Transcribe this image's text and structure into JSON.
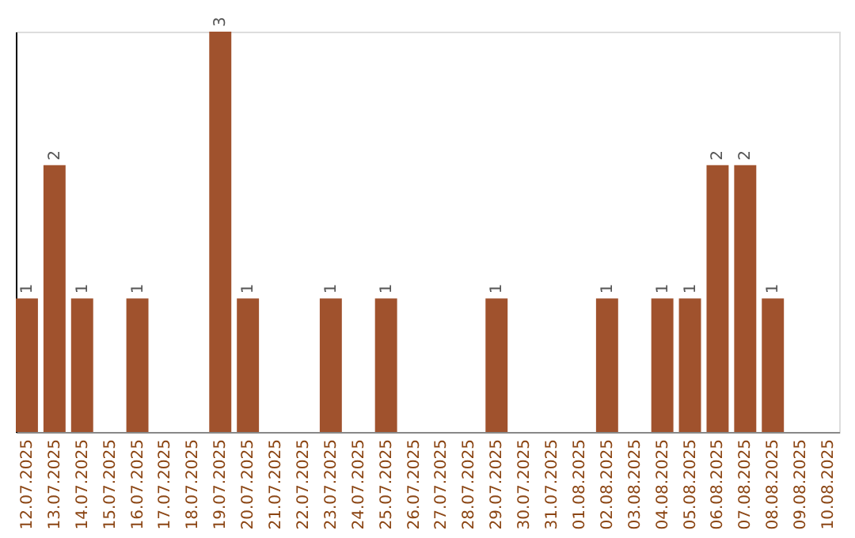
{
  "chart_data": {
    "type": "bar",
    "categories": [
      "12.07.2025",
      "13.07.2025",
      "14.07.2025",
      "15.07.2025",
      "16.07.2025",
      "17.07.2025",
      "18.07.2025",
      "19.07.2025",
      "20.07.2025",
      "21.07.2025",
      "22.07.2025",
      "23.07.2025",
      "24.07.2025",
      "25.07.2025",
      "26.07.2025",
      "27.07.2025",
      "28.07.2025",
      "29.07.2025",
      "30.07.2025",
      "31.07.2025",
      "01.08.2025",
      "02.08.2025",
      "03.08.2025",
      "04.08.2025",
      "05.08.2025",
      "06.08.2025",
      "07.08.2025",
      "08.08.2025",
      "09.08.2025",
      "10.08.2025"
    ],
    "values": [
      1,
      2,
      1,
      0,
      1,
      0,
      0,
      3,
      1,
      0,
      0,
      1,
      0,
      1,
      0,
      0,
      0,
      1,
      0,
      0,
      0,
      1,
      0,
      1,
      1,
      2,
      2,
      1,
      0,
      0
    ],
    "value_labels": [
      "1",
      "2",
      "1",
      null,
      "1",
      null,
      null,
      "3",
      "1",
      null,
      null,
      "1",
      null,
      "1",
      null,
      null,
      null,
      "1",
      null,
      null,
      null,
      "1",
      null,
      "1",
      "1",
      "2",
      "2",
      "1",
      null,
      null
    ],
    "color": "#a0522d",
    "ylim": [
      0,
      3
    ],
    "tick_labels": "x"
  }
}
